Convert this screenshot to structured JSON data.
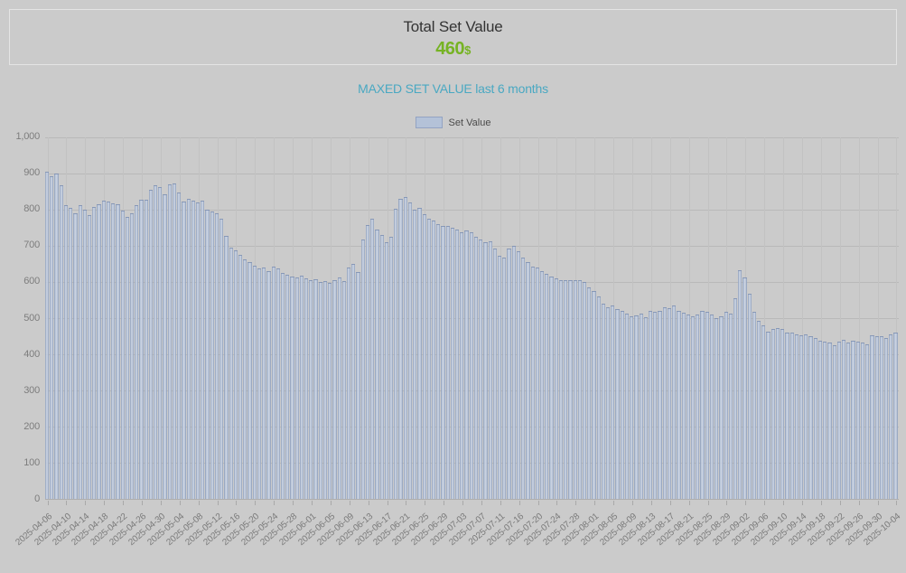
{
  "page": {
    "background": "#cbcbcb"
  },
  "header": {
    "title": "Total Set Value",
    "value": "460",
    "currency": "$",
    "value_color": "#76b324"
  },
  "subtitle": {
    "text": "MAXED SET VALUE last 6 months",
    "color": "#49a8c2"
  },
  "legend": {
    "label": "Set Value",
    "swatch_fill": "#b4c2d8",
    "swatch_border": "#93a3c2"
  },
  "chart_data": {
    "type": "bar",
    "title": "MAXED SET VALUE last 6 months",
    "series_name": "Set Value",
    "ylabel": "",
    "xlabel": "",
    "ylim": [
      0,
      1000
    ],
    "y_tick_step": 100,
    "y_tick_labels": [
      "0",
      "100",
      "200",
      "300",
      "400",
      "500",
      "600",
      "700",
      "800",
      "900",
      "1,000"
    ],
    "grid": true,
    "legend_position": "top-center",
    "bar_fill": "#b4c2d8",
    "bar_edge": "#7e91b5",
    "tick_every": 4,
    "x_tick_labels": [
      "2025-04-06",
      "2025-04-10",
      "2025-04-14",
      "2025-04-18",
      "2025-04-22",
      "2025-04-26",
      "2025-04-30",
      "2025-05-04",
      "2025-05-08",
      "2025-05-12",
      "2025-05-16",
      "2025-05-20",
      "2025-05-24",
      "2025-05-28",
      "2025-06-01",
      "2025-06-05",
      "2025-06-09",
      "2025-06-13",
      "2025-06-17",
      "2025-06-21",
      "2025-06-25",
      "2025-06-29",
      "2025-07-03",
      "2025-07-07",
      "2025-07-11",
      "2025-07-16",
      "2025-07-20",
      "2025-07-24",
      "2025-07-28",
      "2025-08-01",
      "2025-08-05",
      "2025-08-09",
      "2025-08-13",
      "2025-08-17",
      "2025-08-21",
      "2025-08-25",
      "2025-08-29",
      "2025-09-02",
      "2025-09-06",
      "2025-09-10",
      "2025-09-14",
      "2025-09-18",
      "2025-09-22",
      "2025-09-26",
      "2025-09-30",
      "2025-10-04"
    ],
    "values": [
      904,
      892,
      900,
      868,
      812,
      806,
      790,
      812,
      800,
      786,
      808,
      815,
      825,
      822,
      818,
      815,
      798,
      781,
      790,
      812,
      827,
      828,
      855,
      868,
      862,
      843,
      869,
      872,
      848,
      822,
      831,
      826,
      820,
      825,
      801,
      795,
      790,
      776,
      728,
      694,
      688,
      676,
      662,
      655,
      645,
      637,
      640,
      630,
      643,
      637,
      625,
      620,
      615,
      612,
      618,
      610,
      606,
      608,
      600,
      603,
      598,
      605,
      612,
      603,
      640,
      651,
      628,
      717,
      757,
      775,
      745,
      730,
      710,
      724,
      803,
      829,
      836,
      821,
      800,
      805,
      788,
      776,
      771,
      759,
      755,
      755,
      750,
      745,
      738,
      742,
      738,
      726,
      717,
      709,
      712,
      693,
      672,
      668,
      693,
      701,
      684,
      668,
      655,
      643,
      639,
      630,
      622,
      614,
      610,
      606,
      606,
      604,
      604,
      606,
      600,
      585,
      575,
      559,
      540,
      530,
      535,
      525,
      519,
      513,
      505,
      507,
      513,
      502,
      521,
      517,
      521,
      530,
      527,
      535,
      521,
      515,
      511,
      505,
      509,
      521,
      517,
      509,
      500,
      506,
      517,
      513,
      554,
      632,
      612,
      567,
      517,
      492,
      480,
      463,
      469,
      473,
      470,
      459,
      461,
      455,
      452,
      454,
      451,
      446,
      437,
      434,
      432,
      424,
      434,
      440,
      432,
      438,
      434,
      432,
      427,
      452,
      449,
      451,
      446,
      455,
      460
    ]
  }
}
